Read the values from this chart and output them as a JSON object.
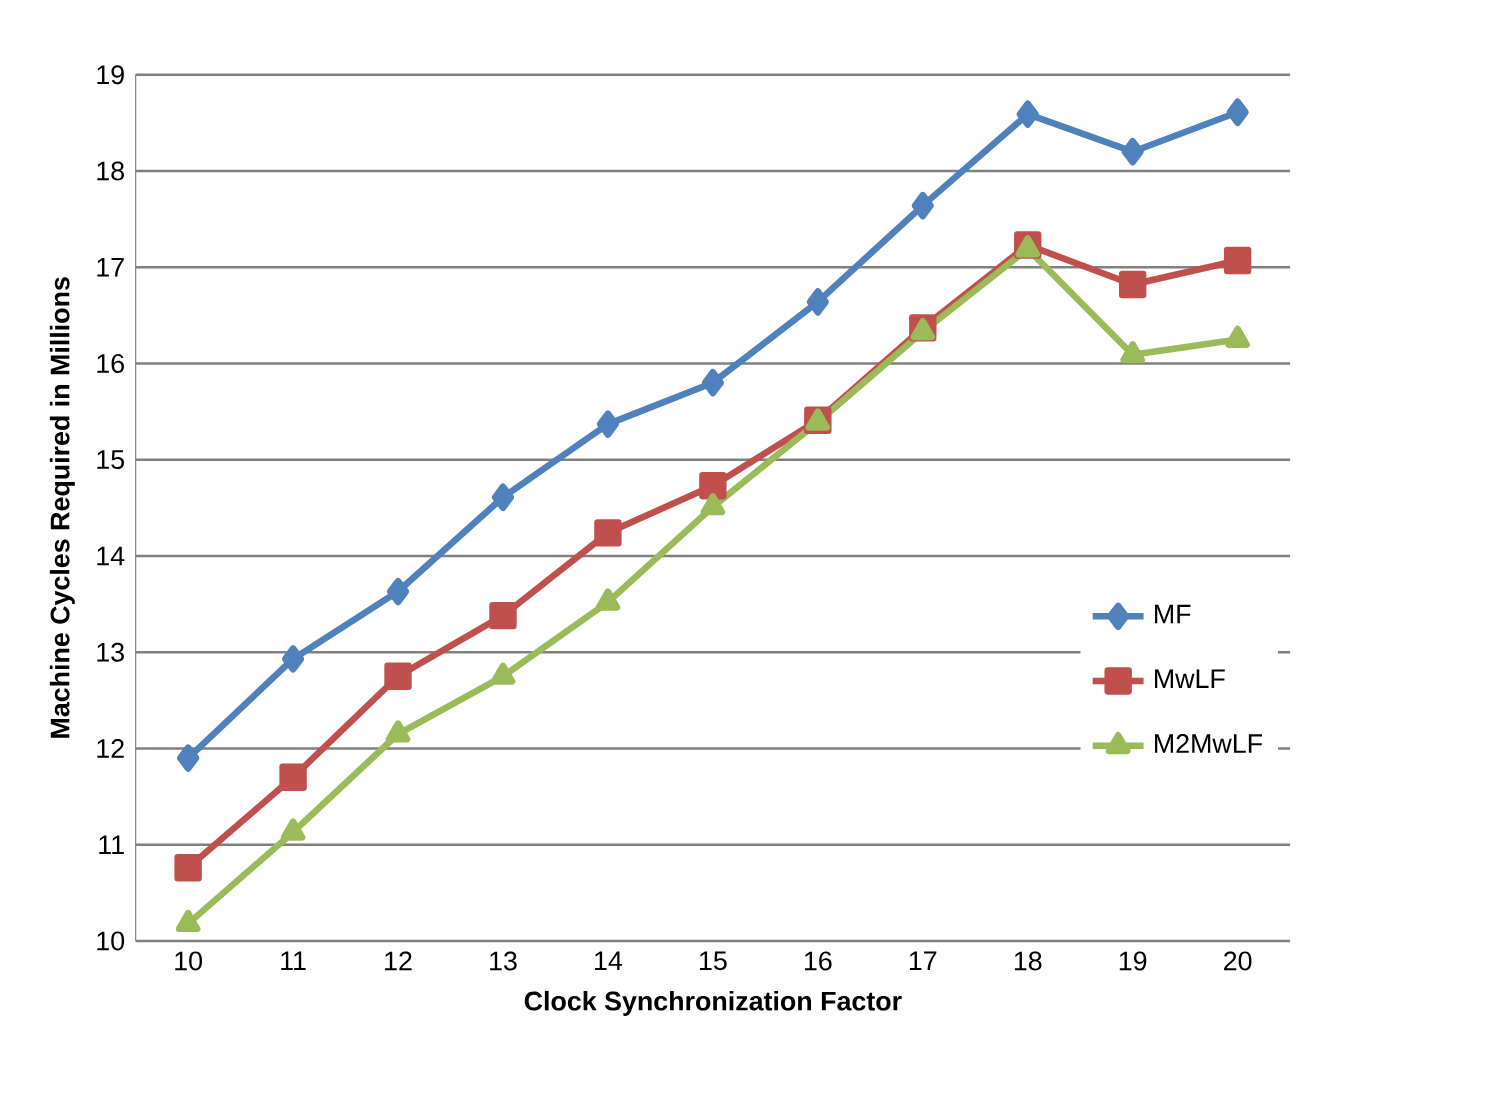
{
  "chart_data": {
    "type": "line",
    "xlabel": "Clock Synchronization Factor",
    "ylabel": "Machine Cycles Required in Millions",
    "categories": [
      "10",
      "11",
      "12",
      "13",
      "14",
      "15",
      "16",
      "17",
      "18",
      "19",
      "20"
    ],
    "series": [
      {
        "name": "MF",
        "color": "#4f81bd",
        "marker": "diamond",
        "values": [
          11.9,
          12.93,
          13.63,
          14.61,
          15.37,
          15.8,
          16.64,
          17.64,
          18.59,
          18.2,
          18.61
        ]
      },
      {
        "name": "MwLF",
        "color": "#c0504d",
        "marker": "square",
        "values": [
          10.76,
          11.7,
          12.75,
          13.38,
          14.24,
          14.73,
          15.41,
          16.37,
          17.23,
          16.82,
          17.07
        ]
      },
      {
        "name": "M2MwLF",
        "color": "#9bbb59",
        "marker": "triangle",
        "values": [
          10.18,
          11.13,
          12.15,
          12.75,
          13.52,
          14.51,
          15.39,
          16.33,
          17.19,
          16.09,
          16.25
        ]
      }
    ],
    "ylim": [
      10,
      19
    ],
    "yticks": [
      10,
      11,
      12,
      13,
      14,
      15,
      16,
      17,
      18,
      19
    ],
    "grid": "y",
    "legend": "right",
    "line_style": "solid"
  }
}
